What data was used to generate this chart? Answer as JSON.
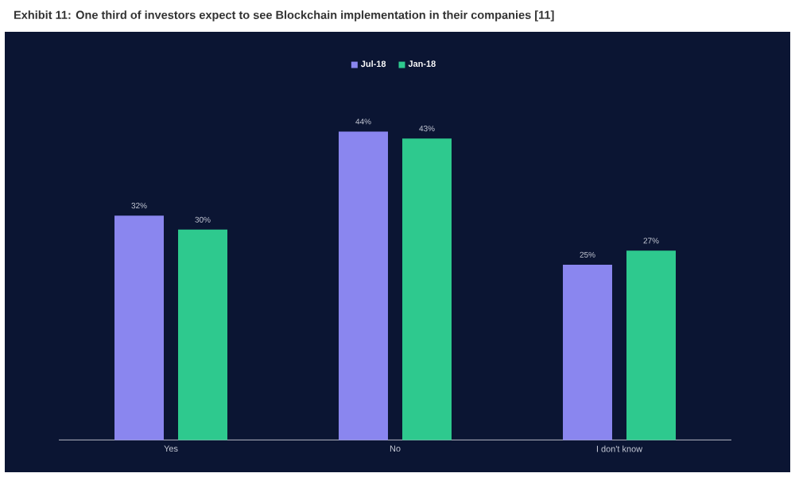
{
  "chart_data": {
    "type": "bar",
    "title": "Exhibit 11: One third of investors expect to see Blockchain implementation in their companies [11]",
    "categories": [
      "Yes",
      "No",
      "I don't know"
    ],
    "series": [
      {
        "name": "Jul-18",
        "color": "#8a86ef",
        "values": [
          32,
          44,
          25
        ],
        "value_labels": [
          "32%",
          "44%",
          "25%"
        ]
      },
      {
        "name": "Jan-18",
        "color": "#2ec98e",
        "values": [
          30,
          43,
          27
        ],
        "value_labels": [
          "30%",
          "43%",
          "27%"
        ]
      }
    ],
    "ylim": [
      0,
      44
    ],
    "legend": "top",
    "tick_labels": "x"
  }
}
